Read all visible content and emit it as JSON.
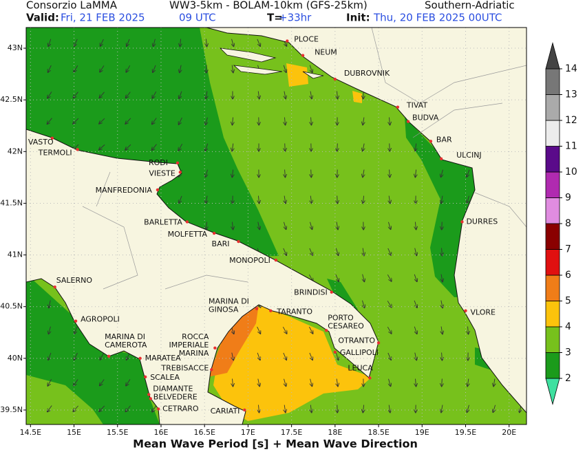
{
  "header": {
    "producer": "Consorzio LaMMA",
    "models": "WW3-5km - BOLAM-10km (GFS-25km)",
    "region": "Southern-Adriatic",
    "valid_label": "Valid:",
    "valid_date": "Fri, 21 FEB 2025",
    "valid_hour": "09 UTC",
    "step_label": "T=",
    "step": "+33hr",
    "init_label": "Init:",
    "init_date": "Thu, 20 FEB 2025 00UTC"
  },
  "map": {
    "title": "Mean Wave Period [s] + Mean Wave Direction",
    "lonlim": [
      14.45,
      20.2
    ],
    "latlim": [
      39.36,
      43.2
    ],
    "lat_ticks": [
      {
        "value": 43,
        "label": "43N"
      },
      {
        "value": 42.5,
        "label": "42.5N"
      },
      {
        "value": 42,
        "label": "42N"
      },
      {
        "value": 41.5,
        "label": "41.5N"
      },
      {
        "value": 41,
        "label": "41N"
      },
      {
        "value": 40.5,
        "label": "40.5N"
      },
      {
        "value": 40,
        "label": "40N"
      },
      {
        "value": 39.5,
        "label": "39.5N"
      }
    ],
    "lon_ticks": [
      {
        "value": 14.5,
        "label": "14.5E"
      },
      {
        "value": 15,
        "label": "15E"
      },
      {
        "value": 15.5,
        "label": "15.5E"
      },
      {
        "value": 16,
        "label": "16E"
      },
      {
        "value": 16.5,
        "label": "16.5E"
      },
      {
        "value": 17,
        "label": "17E"
      },
      {
        "value": 17.5,
        "label": "17.5E"
      },
      {
        "value": 18,
        "label": "18E"
      },
      {
        "value": 18.5,
        "label": "18.5E"
      },
      {
        "value": 19,
        "label": "19E"
      },
      {
        "value": 19.5,
        "label": "19.5E"
      },
      {
        "value": 20,
        "label": "20E"
      }
    ],
    "cities": [
      {
        "label": [
          "PLOCE"
        ],
        "lon": 17.45,
        "lat": 43.07
      },
      {
        "label": [
          "NEUM"
        ],
        "lon": 17.63,
        "lat": 42.93
      },
      {
        "label": [
          "DUBROVNIK"
        ],
        "lon": 18.0,
        "lat": 42.7
      },
      {
        "label": [
          "TIVAT"
        ],
        "lon": 18.72,
        "lat": 42.43
      },
      {
        "label": [
          "BUDVA"
        ],
        "lon": 18.84,
        "lat": 42.29
      },
      {
        "label": [
          "BAR"
        ],
        "lon": 19.1,
        "lat": 42.1
      },
      {
        "label": [
          "ULCINJ"
        ],
        "lon": 19.22,
        "lat": 41.93
      },
      {
        "label": [
          "DURRES"
        ],
        "lon": 19.46,
        "lat": 41.32
      },
      {
        "label": [
          "VLORE"
        ],
        "lon": 19.5,
        "lat": 40.46
      },
      {
        "label": [
          "VASTO"
        ],
        "lon": 14.75,
        "lat": 42.13
      },
      {
        "label": [
          "TERMOLI"
        ],
        "lon": 15.04,
        "lat": 42.02
      },
      {
        "label": [
          "RODI"
        ],
        "lon": 16.19,
        "lat": 41.89
      },
      {
        "label": [
          "VIESTE"
        ],
        "lon": 16.22,
        "lat": 41.8
      },
      {
        "label": [
          "MANFREDONIA"
        ],
        "lon": 15.96,
        "lat": 41.63
      },
      {
        "label": [
          "BARLETTA"
        ],
        "lon": 16.3,
        "lat": 41.32
      },
      {
        "label": [
          "MOLFETTA"
        ],
        "lon": 16.61,
        "lat": 41.21
      },
      {
        "label": [
          "BARI"
        ],
        "lon": 16.89,
        "lat": 41.13
      },
      {
        "label": [
          "MONOPOLI"
        ],
        "lon": 17.32,
        "lat": 40.95
      },
      {
        "label": [
          "BRINDISI"
        ],
        "lon": 17.96,
        "lat": 40.64
      },
      {
        "label": [
          "TARANTO"
        ],
        "lon": 17.26,
        "lat": 40.46
      },
      {
        "label": [
          "MARINA DI",
          "GINOSA"
        ],
        "lon": 17.1,
        "lat": 40.48
      },
      {
        "label": [
          "PORTO",
          "CESAREO"
        ],
        "lon": 17.9,
        "lat": 40.27
      },
      {
        "label": [
          "OTRANTO"
        ],
        "lon": 18.5,
        "lat": 40.15
      },
      {
        "label": [
          "GALLIPOLI"
        ],
        "lon": 18.0,
        "lat": 40.06
      },
      {
        "label": [
          "LEUCA"
        ],
        "lon": 18.4,
        "lat": 39.81
      },
      {
        "label": [
          "SALERNO"
        ],
        "lon": 14.78,
        "lat": 40.69
      },
      {
        "label": [
          "AGROPOLI"
        ],
        "lon": 15.02,
        "lat": 40.36
      },
      {
        "label": [
          "MARINA DI",
          "CAMEROTA"
        ],
        "lon": 15.4,
        "lat": 40.02
      },
      {
        "label": [
          "ROCCA",
          "IMPERIALE",
          "MARINA"
        ],
        "lon": 16.62,
        "lat": 40.1
      },
      {
        "label": [
          "MARATEA"
        ],
        "lon": 15.76,
        "lat": 40.0
      },
      {
        "label": [
          "TREBISACCE"
        ],
        "lon": 16.58,
        "lat": 39.89
      },
      {
        "label": [
          "SCALEA"
        ],
        "lon": 15.82,
        "lat": 39.82
      },
      {
        "label": [
          "DIAMANTE"
        ],
        "lon": 15.86,
        "lat": 39.65
      },
      {
        "label": [
          "BELVEDERE"
        ],
        "lon": 15.88,
        "lat": 39.61
      },
      {
        "label": [
          "CETRARO"
        ],
        "lon": 15.97,
        "lat": 39.51
      },
      {
        "label": [
          "CARIATI"
        ],
        "lon": 16.96,
        "lat": 39.5
      }
    ]
  },
  "colorbar": {
    "levels": [
      2,
      3,
      4,
      5,
      6,
      7,
      8,
      9,
      10,
      11,
      12,
      13,
      14
    ],
    "colors": [
      "#3ee0a0",
      "#1b9b1b",
      "#77c11c",
      "#fcc30c",
      "#f07d18",
      "#e01010",
      "#8a0000",
      "#e08ce0",
      "#b02ab0",
      "#5a0a8a",
      "#ececec",
      "#aaaaaa",
      "#777777",
      "#444444"
    ]
  }
}
